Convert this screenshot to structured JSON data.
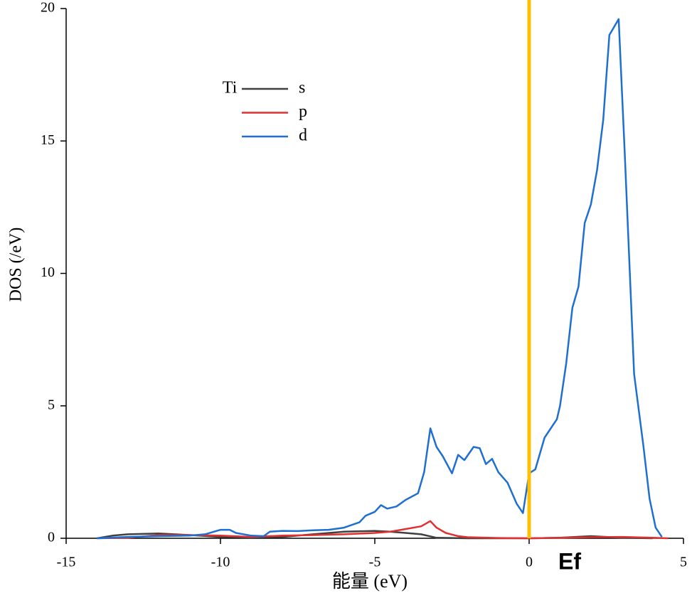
{
  "chart_data": {
    "type": "line",
    "x_label": "能量 (eV)",
    "y_label": "DOS (/eV)",
    "legend_title": "Ti",
    "annotation": "Ef",
    "xlim": [
      -15,
      5
    ],
    "xticks": [
      -15,
      -10,
      -5,
      0,
      5
    ],
    "ylim": [
      0,
      20
    ],
    "yticks": [
      0,
      5,
      10,
      15,
      20
    ],
    "vline": {
      "x": 0,
      "color": "#ffc000"
    },
    "series": [
      {
        "name": "s",
        "color": "#404040",
        "x": [
          -14,
          -13.5,
          -13,
          -12,
          -11,
          -10,
          -9,
          -8,
          -7,
          -6,
          -5,
          -4.5,
          -4,
          -3.5,
          -3,
          -2,
          0,
          1,
          2,
          3,
          4
        ],
        "values": [
          0,
          0.1,
          0.15,
          0.18,
          0.12,
          0.05,
          0.03,
          0.05,
          0.15,
          0.25,
          0.28,
          0.25,
          0.2,
          0.15,
          0.02,
          0,
          0,
          0.02,
          0.08,
          0.02,
          0
        ]
      },
      {
        "name": "p",
        "color": "#e03030",
        "x": [
          -14,
          -13,
          -12,
          -11,
          -10,
          -9,
          -8,
          -7,
          -6,
          -5,
          -4.5,
          -4,
          -3.5,
          -3.2,
          -3,
          -2.7,
          -2.3,
          -2,
          -1,
          0,
          1,
          2,
          3,
          4,
          4.5
        ],
        "values": [
          0,
          0.02,
          0.12,
          0.12,
          0.1,
          0.05,
          0.1,
          0.12,
          0.15,
          0.2,
          0.25,
          0.35,
          0.45,
          0.65,
          0.4,
          0.2,
          0.08,
          0.04,
          0.01,
          0,
          0.02,
          0.04,
          0.05,
          0.02,
          0
        ]
      },
      {
        "name": "d",
        "color": "#1f6fd0",
        "x": [
          -14,
          -13,
          -12,
          -11,
          -10.5,
          -10,
          -9.7,
          -9.5,
          -9,
          -8.6,
          -8.4,
          -8,
          -7.5,
          -7,
          -6.5,
          -6,
          -5.5,
          -5.3,
          -5,
          -4.8,
          -4.6,
          -4.3,
          -4,
          -3.6,
          -3.4,
          -3.2,
          -3,
          -2.8,
          -2.5,
          -2.3,
          -2.1,
          -1.8,
          -1.6,
          -1.4,
          -1.2,
          -1,
          -0.7,
          -0.4,
          -0.2,
          0,
          0.2,
          0.5,
          0.9,
          1,
          1.2,
          1.4,
          1.6,
          1.8,
          2,
          2.2,
          2.4,
          2.6,
          2.9,
          3.1,
          3.4,
          3.7,
          3.9,
          4.1,
          4.3
        ],
        "values": [
          0,
          0.05,
          0.08,
          0.1,
          0.15,
          0.32,
          0.32,
          0.2,
          0.1,
          0.08,
          0.25,
          0.28,
          0.27,
          0.3,
          0.32,
          0.4,
          0.6,
          0.85,
          1.0,
          1.25,
          1.12,
          1.2,
          1.45,
          1.7,
          2.5,
          4.15,
          3.45,
          3.1,
          2.45,
          3.15,
          2.95,
          3.45,
          3.4,
          2.8,
          3.0,
          2.5,
          2.1,
          1.3,
          0.95,
          2.45,
          2.6,
          3.8,
          4.5,
          5.0,
          6.6,
          8.7,
          9.5,
          11.9,
          12.6,
          13.9,
          15.8,
          19.0,
          19.6,
          14.5,
          6.2,
          3.5,
          1.5,
          0.4,
          0.05
        ]
      }
    ]
  }
}
